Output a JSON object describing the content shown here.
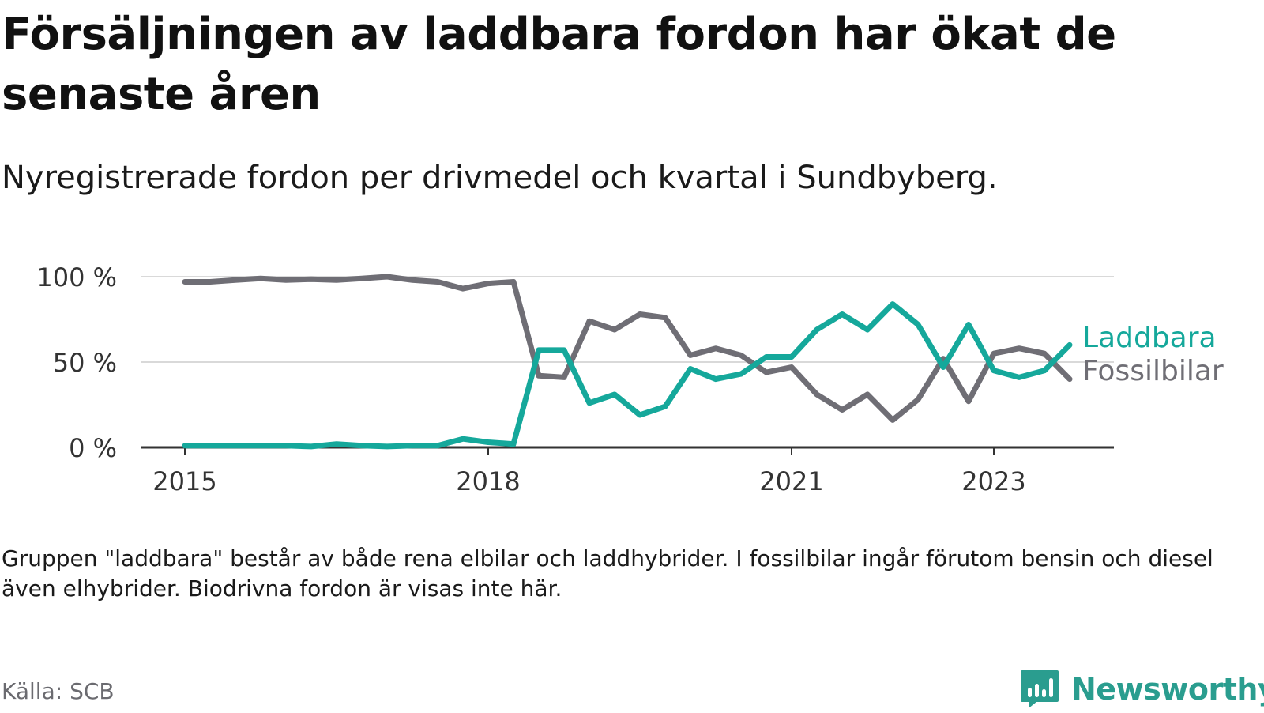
{
  "title": "Försäljningen av laddbara fordon har ökat de senaste åren",
  "subtitle": "Nyregistrerade fordon per drivmedel och kvartal i Sundbyberg.",
  "note": "Gruppen \"laddbara\" består av både rena elbilar och laddhybrider. I fossilbilar ingår förutom bensin och diesel även elhybrider. Biodrivna fordon är visas inte här.",
  "source": "Källa: SCB",
  "brand": "Newsworthy",
  "chart_data": {
    "type": "line",
    "x_unit": "quarter",
    "x": [
      2015.0,
      2015.25,
      2015.5,
      2015.75,
      2016.0,
      2016.25,
      2016.5,
      2016.75,
      2017.0,
      2017.25,
      2017.5,
      2017.75,
      2018.0,
      2018.25,
      2018.5,
      2018.75,
      2019.0,
      2019.25,
      2019.5,
      2019.75,
      2020.0,
      2020.25,
      2020.5,
      2020.75,
      2021.0,
      2021.25,
      2021.5,
      2021.75,
      2022.0,
      2022.25,
      2022.5,
      2022.75,
      2023.0,
      2023.25,
      2023.5,
      2023.75
    ],
    "series": [
      {
        "name": "Laddbara",
        "color": "#15a89b",
        "values": [
          1,
          1,
          1,
          1,
          1,
          0.5,
          2,
          1,
          0.5,
          1,
          1,
          5,
          3,
          2,
          57,
          57,
          26,
          31,
          19,
          24,
          46,
          40,
          43,
          53,
          53,
          69,
          78,
          69,
          84,
          72,
          47,
          72,
          45,
          41,
          45,
          60
        ]
      },
      {
        "name": "Fossilbilar",
        "color": "#6f6e75",
        "values": [
          97,
          97,
          98,
          99,
          98,
          98.5,
          98,
          99,
          100,
          98,
          97,
          93,
          96,
          97,
          42,
          41,
          74,
          69,
          78,
          76,
          54,
          58,
          54,
          44,
          47,
          31,
          22,
          31,
          16,
          28,
          52,
          27,
          55,
          58,
          55,
          40
        ]
      }
    ],
    "ylim": [
      0,
      100
    ],
    "yticks": [
      0,
      50,
      100
    ],
    "ytick_labels": [
      "0 %",
      "50 %",
      "100 %"
    ],
    "xticks": [
      2015,
      2018,
      2021,
      2023
    ],
    "xtick_labels": [
      "2015",
      "2018",
      "2021",
      "2023"
    ],
    "grid": true,
    "legend": "right, inline at line ends",
    "xlabel": "",
    "ylabel": ""
  }
}
